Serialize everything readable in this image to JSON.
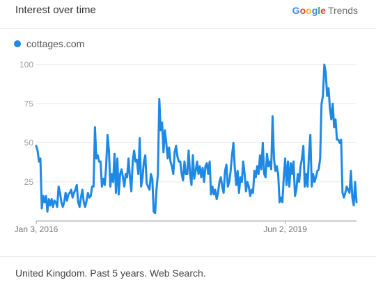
{
  "header": {
    "title": "Interest over time",
    "brand": {
      "letters": [
        {
          "ch": "G",
          "color": "#4285F4"
        },
        {
          "ch": "o",
          "color": "#EA4335"
        },
        {
          "ch": "o",
          "color": "#FBBC05"
        },
        {
          "ch": "g",
          "color": "#4285F4"
        },
        {
          "ch": "l",
          "color": "#34A853"
        },
        {
          "ch": "e",
          "color": "#EA4335"
        }
      ],
      "suffix": "Trends"
    }
  },
  "legend": {
    "label": "cottages.com",
    "color": "#1E88E5"
  },
  "footer": {
    "text": "United Kingdom. Past 5 years. Web Search."
  },
  "chart_data": {
    "type": "line",
    "x_tick_labels": [
      "Jan 3, 2016",
      "Jun 2, 2019"
    ],
    "y_ticks": [
      25,
      50,
      75,
      100
    ],
    "ylim": [
      0,
      100
    ],
    "grid": true,
    "series_color": "#1E88E5",
    "series": [
      {
        "name": "cottages.com",
        "x_start": "Jan 3, 2016",
        "x_interval": "weekly",
        "values": [
          48,
          45,
          38,
          40,
          8,
          16,
          12,
          16,
          6,
          14,
          10,
          14,
          9,
          13,
          12,
          9,
          22,
          18,
          12,
          9,
          12,
          18,
          13,
          17,
          18,
          20,
          15,
          18,
          20,
          23,
          12,
          9,
          15,
          20,
          12,
          9,
          13,
          18,
          15,
          16,
          22,
          22,
          60,
          40,
          42,
          38,
          38,
          22,
          27,
          23,
          35,
          55,
          45,
          22,
          30,
          25,
          43,
          18,
          40,
          17,
          30,
          33,
          28,
          22,
          30,
          28,
          40,
          28,
          19,
          38,
          45,
          38,
          39,
          30,
          53,
          22,
          28,
          38,
          42,
          24,
          22,
          20,
          30,
          27,
          6,
          5,
          20,
          30,
          78,
          58,
          63,
          44,
          58,
          50,
          40,
          47,
          38,
          35,
          30,
          44,
          48,
          41,
          38,
          38,
          30,
          26,
          38,
          30,
          30,
          45,
          30,
          23,
          42,
          27,
          32,
          38,
          30,
          35,
          28,
          34,
          25,
          35,
          37,
          30,
          38,
          17,
          22,
          17,
          20,
          14,
          18,
          25,
          28,
          22,
          18,
          32,
          36,
          22,
          25,
          32,
          42,
          50,
          34,
          23,
          32,
          18,
          28,
          25,
          38,
          30,
          19,
          25,
          22,
          16,
          20,
          18,
          32,
          28,
          35,
          30,
          42,
          33,
          50,
          30,
          28,
          43,
          35,
          38,
          33,
          67,
          40,
          32,
          35,
          30,
          12,
          15,
          12,
          28,
          40,
          23,
          38,
          22,
          37,
          30,
          38,
          16,
          20,
          30,
          25,
          35,
          40,
          48,
          22,
          30,
          22,
          42,
          55,
          22,
          30,
          25,
          28,
          32,
          33,
          40,
          75,
          80,
          100,
          95,
          80,
          85,
          72,
          65,
          75,
          60,
          65,
          52,
          52,
          50,
          52,
          18,
          15,
          18,
          22,
          20,
          18,
          32,
          15,
          10,
          25,
          12
        ]
      }
    ]
  }
}
